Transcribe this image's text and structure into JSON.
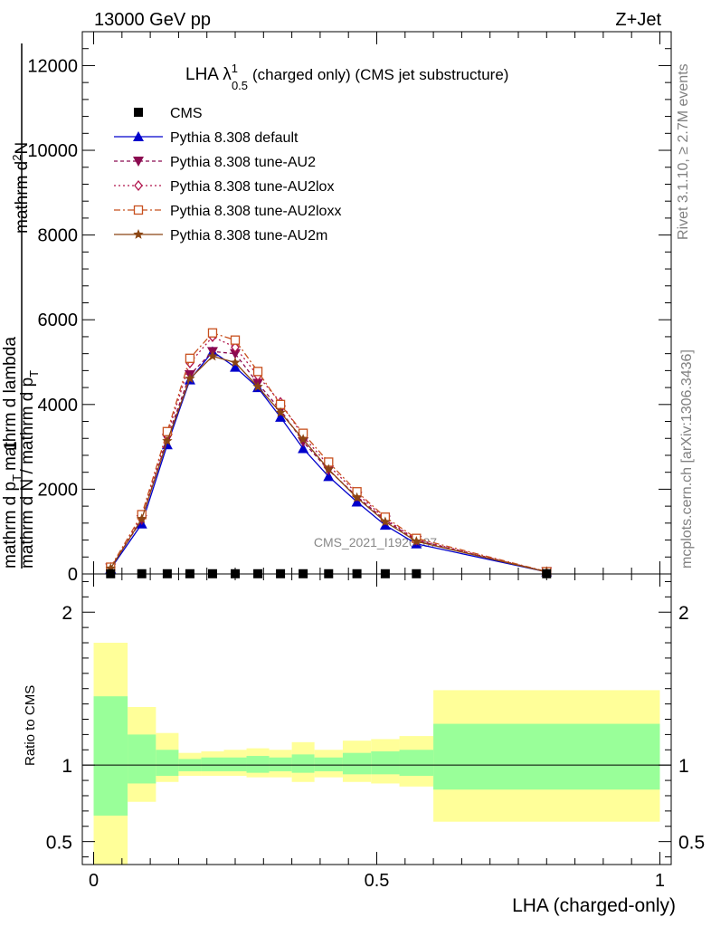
{
  "header": {
    "left": "13000 GeV pp",
    "right": "Z+Jet"
  },
  "side": {
    "rivet": "Rivet 3.1.10, ≥ 2.7M events",
    "mcplots": "mcplots.cern.ch [arXiv:1306.3436]"
  },
  "main": {
    "title_prefix": "LHA λ",
    "title_sup": "1",
    "title_sub": "0.5",
    "title_suffix": "(charged only) (CMS jet substructure)",
    "ylabel_top1": "mathrm d",
    "ylabel_top1_sup": "2",
    "ylabel_top1_tail": "N",
    "ylabel_top2": "mathrm d p",
    "ylabel_top2_sub": "T",
    "ylabel_top2_tail": "mathrm d lambda",
    "ylabel_one": "1",
    "ylabel_bottom": "mathrm d N / mathrm d p",
    "ylabel_bottom_sub": "T",
    "watermark": "CMS_2021_I1920187"
  },
  "ratio": {
    "ylabel": "Ratio to CMS"
  },
  "chart_data": [
    {
      "type": "line",
      "panel": "main",
      "title": "LHA λ^1_0.5 (charged only) (CMS jet substructure)",
      "xlabel": "LHA (charged-only)",
      "xlim": [
        -0.02,
        1.02
      ],
      "ylim": [
        0,
        12800
      ],
      "xticks": [
        0,
        0.5,
        1
      ],
      "yticks": [
        0,
        2000,
        4000,
        6000,
        8000,
        10000,
        12000
      ],
      "ytick_labels": [
        "0",
        "2000",
        "4000",
        "6000",
        "8000",
        "10000",
        "12000"
      ],
      "legend_position": "top-left",
      "series": [
        {
          "name": "CMS",
          "color": "#000000",
          "marker": "square",
          "dash": "",
          "x": [
            0.03,
            0.085,
            0.13,
            0.17,
            0.21,
            0.25,
            0.29,
            0.33,
            0.37,
            0.415,
            0.465,
            0.515,
            0.57,
            0.8
          ],
          "y": [
            5,
            5,
            5,
            5,
            5,
            5,
            5,
            5,
            5,
            5,
            5,
            5,
            5,
            5
          ]
        },
        {
          "name": "Pythia 8.308 default",
          "color": "#0000cc",
          "marker": "triangle-up",
          "dash": "",
          "x": [
            0.03,
            0.085,
            0.13,
            0.17,
            0.21,
            0.25,
            0.29,
            0.33,
            0.37,
            0.415,
            0.465,
            0.515,
            0.57,
            0.8
          ],
          "y": [
            120,
            1180,
            3050,
            4580,
            5250,
            4880,
            4400,
            3700,
            2960,
            2300,
            1700,
            1150,
            710,
            50
          ]
        },
        {
          "name": "Pythia 8.308 tune-AU2",
          "color": "#8b0a50",
          "marker": "triangle-down",
          "dash": "4,3",
          "x": [
            0.03,
            0.085,
            0.13,
            0.17,
            0.21,
            0.25,
            0.29,
            0.33,
            0.37,
            0.415,
            0.465,
            0.515,
            0.57,
            0.8
          ],
          "y": [
            140,
            1280,
            3200,
            4700,
            5250,
            5200,
            4500,
            3870,
            3120,
            2450,
            1830,
            1270,
            790,
            50
          ]
        },
        {
          "name": "Pythia 8.308 tune-AU2lox",
          "color": "#b0144c",
          "marker": "diamond-open",
          "dash": "2,3",
          "x": [
            0.03,
            0.085,
            0.13,
            0.17,
            0.21,
            0.25,
            0.29,
            0.33,
            0.37,
            0.415,
            0.465,
            0.515,
            0.57,
            0.8
          ],
          "y": [
            150,
            1350,
            3280,
            4980,
            5600,
            5350,
            4680,
            4050,
            3250,
            2560,
            1900,
            1300,
            810,
            50
          ]
        },
        {
          "name": "Pythia 8.308 tune-AU2loxx",
          "color": "#c8501e",
          "marker": "square-open",
          "dash": "7,3,2,3",
          "x": [
            0.03,
            0.085,
            0.13,
            0.17,
            0.21,
            0.25,
            0.29,
            0.33,
            0.37,
            0.415,
            0.465,
            0.515,
            0.57,
            0.8
          ],
          "y": [
            160,
            1400,
            3360,
            5090,
            5690,
            5520,
            4780,
            4000,
            3320,
            2640,
            1940,
            1340,
            840,
            55
          ]
        },
        {
          "name": "Pythia 8.308 tune-AU2m",
          "color": "#8b4513",
          "marker": "star",
          "dash": "",
          "x": [
            0.03,
            0.085,
            0.13,
            0.17,
            0.21,
            0.25,
            0.29,
            0.33,
            0.37,
            0.415,
            0.465,
            0.515,
            0.57,
            0.8
          ],
          "y": [
            130,
            1300,
            3140,
            4610,
            5140,
            4990,
            4420,
            3810,
            3180,
            2470,
            1800,
            1230,
            770,
            50
          ]
        }
      ]
    },
    {
      "type": "area",
      "panel": "ratio",
      "ylabel": "Ratio to CMS",
      "xlabel": "LHA (charged-only)",
      "xlim": [
        -0.02,
        1.02
      ],
      "ylim": [
        0.35,
        2.25
      ],
      "xticks": [
        0,
        0.5,
        1
      ],
      "xtick_labels": [
        "0",
        "0.5",
        "1"
      ],
      "yticks": [
        0.5,
        1,
        2
      ],
      "ytick_labels": [
        "0.5",
        "1",
        "2"
      ],
      "reference_line": 1,
      "band_colors": {
        "outer": "#ffff99",
        "inner": "#99ff99"
      },
      "bins": [
        {
          "lo": 0.0,
          "hi": 0.06,
          "outer": [
            0.35,
            1.8
          ],
          "inner": [
            0.67,
            1.45
          ]
        },
        {
          "lo": 0.06,
          "hi": 0.11,
          "outer": [
            0.76,
            1.38
          ],
          "inner": [
            0.88,
            1.2
          ]
        },
        {
          "lo": 0.11,
          "hi": 0.15,
          "outer": [
            0.89,
            1.21
          ],
          "inner": [
            0.93,
            1.1
          ]
        },
        {
          "lo": 0.15,
          "hi": 0.19,
          "outer": [
            0.93,
            1.08
          ],
          "inner": [
            0.96,
            1.04
          ]
        },
        {
          "lo": 0.19,
          "hi": 0.23,
          "outer": [
            0.93,
            1.09
          ],
          "inner": [
            0.96,
            1.05
          ]
        },
        {
          "lo": 0.23,
          "hi": 0.27,
          "outer": [
            0.93,
            1.1
          ],
          "inner": [
            0.96,
            1.05
          ]
        },
        {
          "lo": 0.27,
          "hi": 0.31,
          "outer": [
            0.92,
            1.11
          ],
          "inner": [
            0.95,
            1.06
          ]
        },
        {
          "lo": 0.31,
          "hi": 0.35,
          "outer": [
            0.92,
            1.1
          ],
          "inner": [
            0.96,
            1.05
          ]
        },
        {
          "lo": 0.35,
          "hi": 0.39,
          "outer": [
            0.89,
            1.15
          ],
          "inner": [
            0.95,
            1.07
          ]
        },
        {
          "lo": 0.39,
          "hi": 0.44,
          "outer": [
            0.92,
            1.1
          ],
          "inner": [
            0.96,
            1.05
          ]
        },
        {
          "lo": 0.44,
          "hi": 0.49,
          "outer": [
            0.89,
            1.16
          ],
          "inner": [
            0.94,
            1.08
          ]
        },
        {
          "lo": 0.49,
          "hi": 0.54,
          "outer": [
            0.88,
            1.17
          ],
          "inner": [
            0.94,
            1.09
          ]
        },
        {
          "lo": 0.54,
          "hi": 0.6,
          "outer": [
            0.86,
            1.19
          ],
          "inner": [
            0.93,
            1.1
          ]
        },
        {
          "lo": 0.6,
          "hi": 1.0,
          "outer": [
            0.63,
            1.49
          ],
          "inner": [
            0.84,
            1.27
          ]
        }
      ]
    }
  ]
}
